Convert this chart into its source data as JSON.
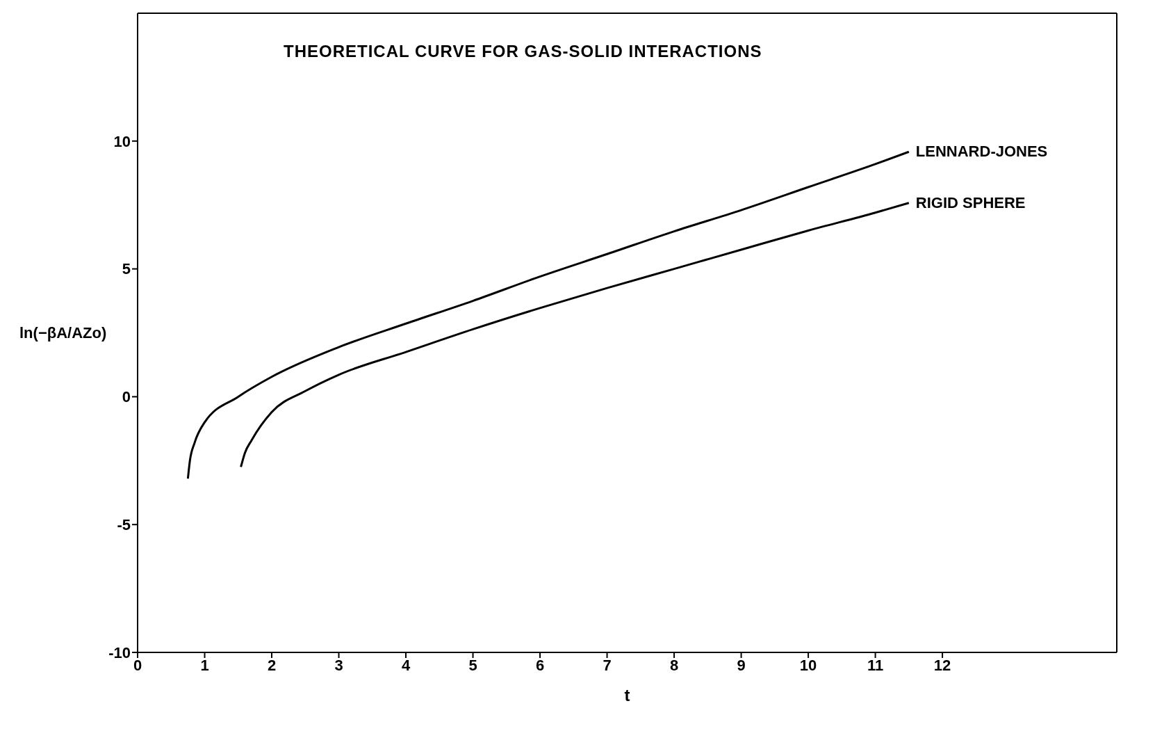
{
  "chart_data": {
    "type": "line",
    "title": "THEORETICAL CURVE FOR GAS-SOLID INTERACTIONS",
    "xlabel": "t",
    "ylabel": "ln(−βA/AZo)",
    "xlim": [
      0,
      14.6
    ],
    "xticks": [
      0,
      1,
      2,
      3,
      4,
      5,
      6,
      7,
      8,
      9,
      10,
      11,
      12
    ],
    "ylim": [
      -10,
      15
    ],
    "yticks": [
      -10,
      -5,
      0,
      5,
      10
    ],
    "grid": false,
    "legend": false,
    "marker": "none",
    "line_style": "solid",
    "series": [
      {
        "name": "LENNARD-JONES",
        "color": "#000000",
        "x": [
          0.75,
          0.78,
          0.85,
          1,
          1.5,
          2,
          3,
          4,
          5,
          6,
          7,
          8,
          9,
          10,
          11,
          11.5
        ],
        "values": [
          -3.2,
          -2.5,
          -1.8,
          -1.0,
          0.0,
          0.78,
          1.94,
          2.86,
          3.75,
          4.7,
          5.58,
          6.47,
          7.3,
          8.2,
          9.1,
          9.58
        ]
      },
      {
        "name": "RIGID SPHERE",
        "color": "#000000",
        "x": [
          1.54,
          1.6,
          1.7,
          2,
          2.5,
          3,
          4,
          5,
          6,
          7,
          8,
          9,
          10,
          11,
          11.5
        ],
        "values": [
          -2.75,
          -2.2,
          -1.7,
          -0.6,
          0.22,
          0.86,
          1.75,
          2.64,
          3.47,
          4.25,
          5.0,
          5.75,
          6.5,
          7.2,
          7.58
        ]
      }
    ]
  }
}
